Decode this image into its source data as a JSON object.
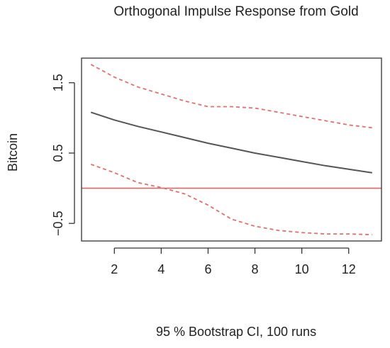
{
  "chart_data": {
    "type": "line",
    "title": "Orthogonal Impulse Response from Gold",
    "ylabel": "Bitcoin",
    "caption": "95 % Bootstrap CI,  100 runs",
    "x": [
      1,
      2,
      3,
      4,
      5,
      6,
      7,
      8,
      9,
      10,
      11,
      12,
      13
    ],
    "xlim": [
      0.6,
      13.4
    ],
    "ylim": [
      -0.75,
      1.85
    ],
    "x_ticks": [
      2,
      4,
      6,
      8,
      10,
      12
    ],
    "y_ticks": [
      -0.5,
      0.5,
      1.5
    ],
    "x_tick_labels": [
      "2",
      "4",
      "6",
      "8",
      "10",
      "12"
    ],
    "y_tick_labels": [
      "−0.5",
      "0.5",
      "1.5"
    ],
    "grid": false,
    "legend": "none",
    "series": [
      {
        "role": "response",
        "style": "solid",
        "color": "#555555",
        "values": [
          1.08,
          0.97,
          0.88,
          0.8,
          0.72,
          0.64,
          0.57,
          0.5,
          0.44,
          0.38,
          0.32,
          0.27,
          0.22
        ]
      },
      {
        "role": "upper",
        "style": "dashed",
        "color": "#e07070",
        "values": [
          1.76,
          1.58,
          1.44,
          1.34,
          1.24,
          1.16,
          1.16,
          1.14,
          1.08,
          1.02,
          0.96,
          0.9,
          0.86
        ]
      },
      {
        "role": "lower",
        "style": "dashed",
        "color": "#e07070",
        "values": [
          0.34,
          0.22,
          0.08,
          0.01,
          -0.08,
          -0.24,
          -0.44,
          -0.54,
          -0.6,
          -0.63,
          -0.65,
          -0.65,
          -0.66
        ]
      }
    ],
    "reference_line": {
      "y": 0,
      "color": "#e06666"
    }
  }
}
